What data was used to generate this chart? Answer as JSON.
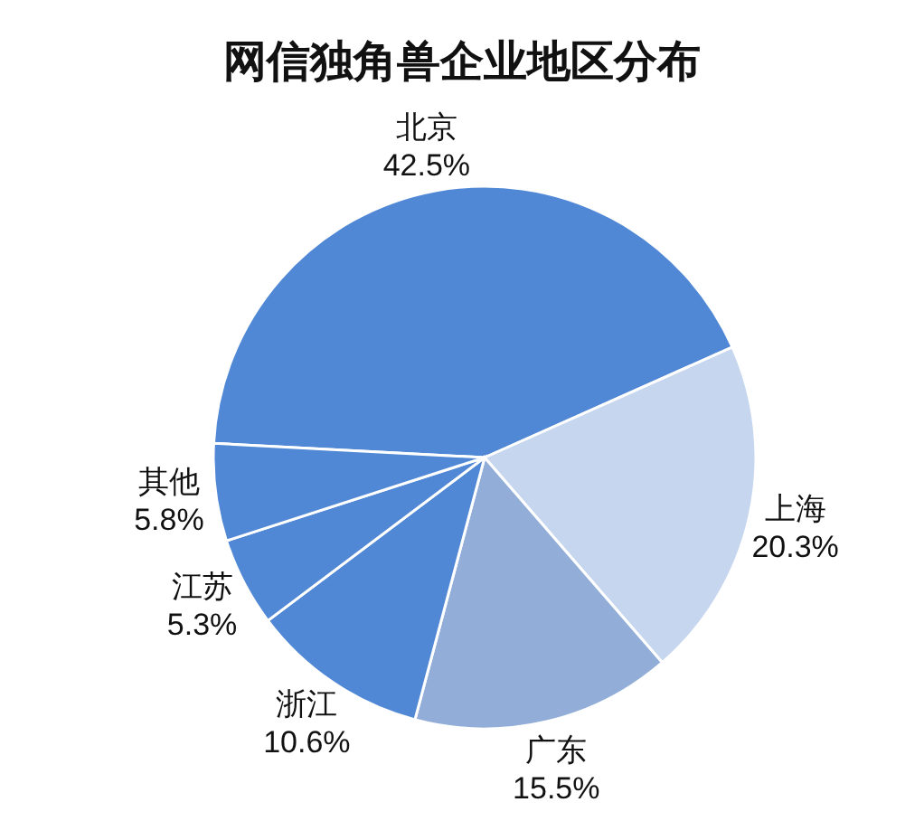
{
  "chart_data": {
    "type": "pie",
    "title": "网信独角兽企业地区分布",
    "categories": [
      "北京",
      "上海",
      "广东",
      "浙江",
      "江苏",
      "其他"
    ],
    "values": [
      42.5,
      20.3,
      15.5,
      10.6,
      5.3,
      5.8
    ],
    "value_labels": [
      "42.5%",
      "20.3%",
      "15.5%",
      "10.6%",
      "5.3%",
      "5.8%"
    ],
    "colors": [
      "#5088d6",
      "#c6d6ef",
      "#92aed8",
      "#5088d6",
      "#5088d6",
      "#5088d6"
    ]
  }
}
